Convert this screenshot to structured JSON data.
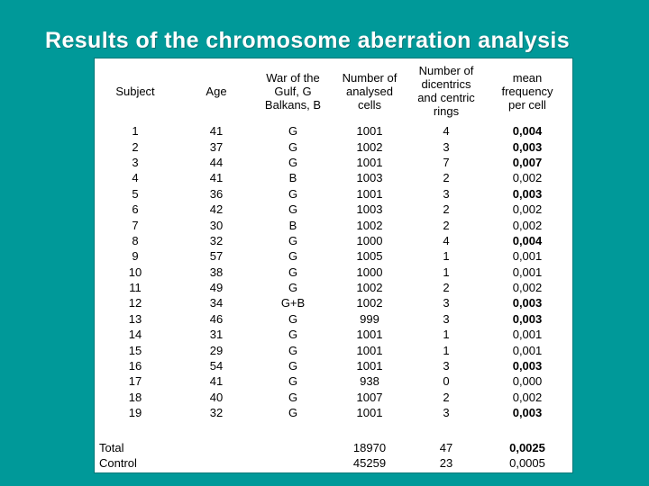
{
  "slide": {
    "title": "Results of the chromosome aberration analysis"
  },
  "colors": {
    "background": "#009999",
    "title_text": "#FFFFFF",
    "panel_background": "#FFFFFF",
    "table_text": "#000000"
  },
  "table": {
    "columns": [
      {
        "key": "subject",
        "label": "Subject"
      },
      {
        "key": "age",
        "label": "Age"
      },
      {
        "key": "war",
        "label": "War of the\nGulf, G\nBalkans, B"
      },
      {
        "key": "cells",
        "label": "Number of\nanalysed\ncells"
      },
      {
        "key": "dicentrics",
        "label": "Number of\ndicentrics\nand centric\nrings"
      },
      {
        "key": "mean",
        "label": "mean\nfrequency\nper cell"
      }
    ],
    "rows": [
      {
        "subject": "1",
        "age": "41",
        "war": "G",
        "cells": "1001",
        "dicentrics": "4",
        "mean": "0,004",
        "mean_bold": true
      },
      {
        "subject": "2",
        "age": "37",
        "war": "G",
        "cells": "1002",
        "dicentrics": "3",
        "mean": "0,003",
        "mean_bold": true
      },
      {
        "subject": "3",
        "age": "44",
        "war": "G",
        "cells": "1001",
        "dicentrics": "7",
        "mean": "0,007",
        "mean_bold": true
      },
      {
        "subject": "4",
        "age": "41",
        "war": "B",
        "cells": "1003",
        "dicentrics": "2",
        "mean": "0,002",
        "mean_bold": false
      },
      {
        "subject": "5",
        "age": "36",
        "war": "G",
        "cells": "1001",
        "dicentrics": "3",
        "mean": "0,003",
        "mean_bold": true
      },
      {
        "subject": "6",
        "age": "42",
        "war": "G",
        "cells": "1003",
        "dicentrics": "2",
        "mean": "0,002",
        "mean_bold": false
      },
      {
        "subject": "7",
        "age": "30",
        "war": "B",
        "cells": "1002",
        "dicentrics": "2",
        "mean": "0,002",
        "mean_bold": false
      },
      {
        "subject": "8",
        "age": "32",
        "war": "G",
        "cells": "1000",
        "dicentrics": "4",
        "mean": "0,004",
        "mean_bold": true
      },
      {
        "subject": "9",
        "age": "57",
        "war": "G",
        "cells": "1005",
        "dicentrics": "1",
        "mean": "0,001",
        "mean_bold": false
      },
      {
        "subject": "10",
        "age": "38",
        "war": "G",
        "cells": "1000",
        "dicentrics": "1",
        "mean": "0,001",
        "mean_bold": false
      },
      {
        "subject": "11",
        "age": "49",
        "war": "G",
        "cells": "1002",
        "dicentrics": "2",
        "mean": "0,002",
        "mean_bold": false
      },
      {
        "subject": "12",
        "age": "34",
        "war": "G+B",
        "cells": "1002",
        "dicentrics": "3",
        "mean": "0,003",
        "mean_bold": true
      },
      {
        "subject": "13",
        "age": "46",
        "war": "G",
        "cells": "999",
        "dicentrics": "3",
        "mean": "0,003",
        "mean_bold": true
      },
      {
        "subject": "14",
        "age": "31",
        "war": "G",
        "cells": "1001",
        "dicentrics": "1",
        "mean": "0,001",
        "mean_bold": false
      },
      {
        "subject": "15",
        "age": "29",
        "war": "G",
        "cells": "1001",
        "dicentrics": "1",
        "mean": "0,001",
        "mean_bold": false
      },
      {
        "subject": "16",
        "age": "54",
        "war": "G",
        "cells": "1001",
        "dicentrics": "3",
        "mean": "0,003",
        "mean_bold": true
      },
      {
        "subject": "17",
        "age": "41",
        "war": "G",
        "cells": "938",
        "dicentrics": "0",
        "mean": "0,000",
        "mean_bold": false
      },
      {
        "subject": "18",
        "age": "40",
        "war": "G",
        "cells": "1007",
        "dicentrics": "2",
        "mean": "0,002",
        "mean_bold": false
      },
      {
        "subject": "19",
        "age": "32",
        "war": "G",
        "cells": "1001",
        "dicentrics": "3",
        "mean": "0,003",
        "mean_bold": true
      }
    ],
    "summary_rows": [
      {
        "label": "Total",
        "cells": "18970",
        "dicentrics": "47",
        "mean": "0,0025",
        "mean_bold": true
      },
      {
        "label": "Control",
        "cells": "45259",
        "dicentrics": "23",
        "mean": "0,0005",
        "mean_bold": false
      }
    ]
  }
}
